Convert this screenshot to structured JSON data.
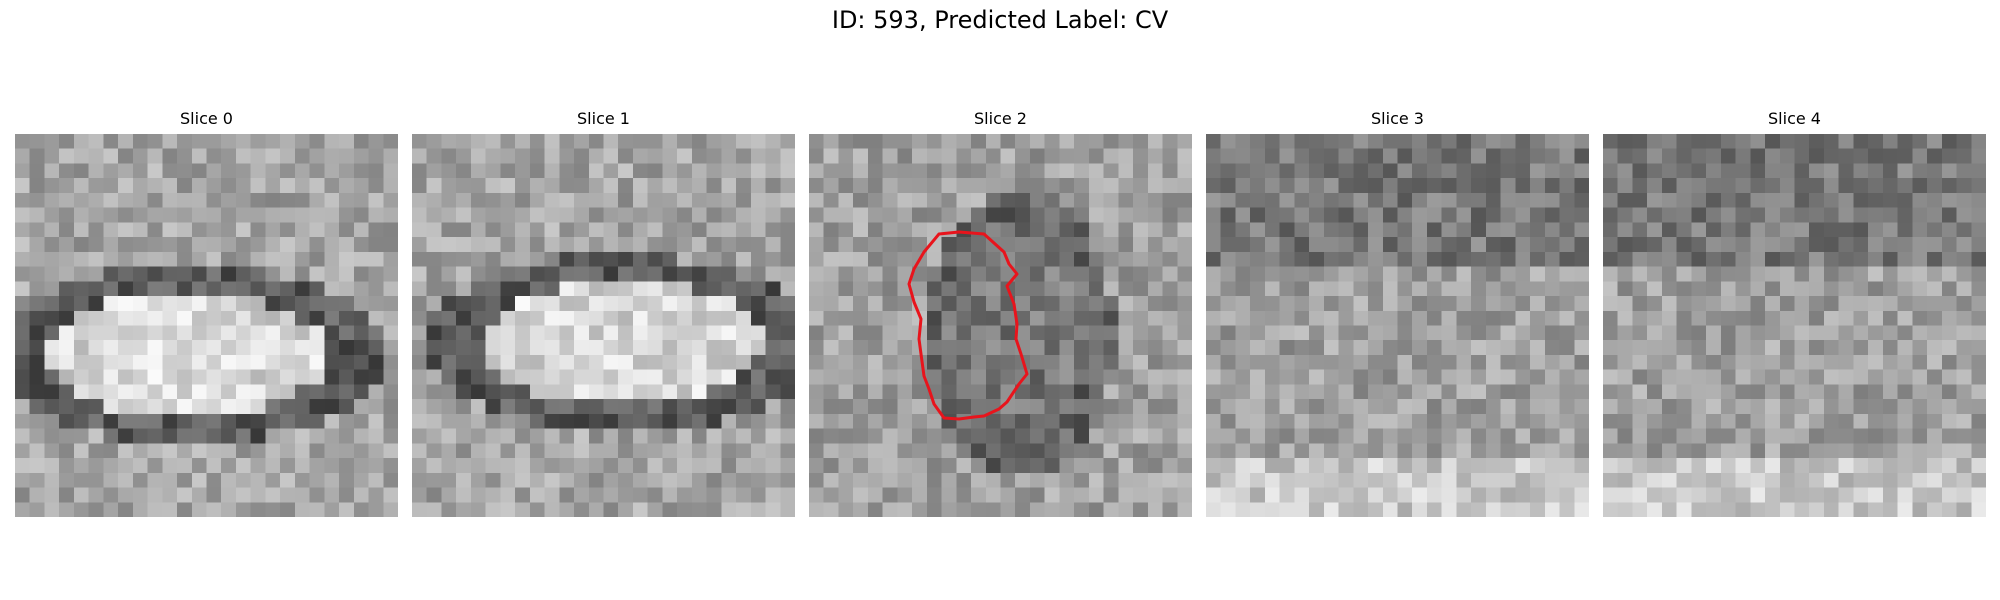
{
  "title": "ID: 593, Predicted Label: CV",
  "slices": [
    {
      "label": "Slice 0"
    },
    {
      "label": "Slice 1"
    },
    {
      "label": "Slice 2"
    },
    {
      "label": "Slice 3"
    },
    {
      "label": "Slice 4"
    }
  ],
  "contour_color": "#e8141c"
}
